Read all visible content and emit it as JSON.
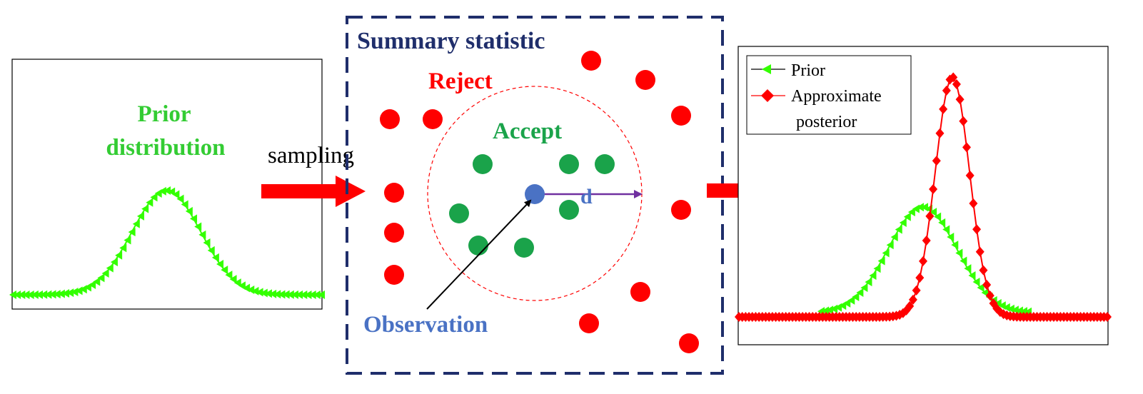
{
  "colors": {
    "prior_green": "#33cc33",
    "prior_marker": "#33ff00",
    "reject_red": "#ff0000",
    "accept_green": "#1aa34a",
    "observation_blue": "#4a72c4",
    "distance_purple": "#7030a0",
    "summary_navy": "#1f2e6b",
    "arrow_red": "#ff0000"
  },
  "left_panel": {
    "title_line1": "Prior",
    "title_line2": "distribution"
  },
  "arrow_label": "sampling",
  "center_panel": {
    "title": "Summary statistic",
    "reject_label": "Reject",
    "accept_label": "Accept",
    "observation_label": "Observation",
    "distance_label": "d"
  },
  "right_panel": {
    "legend": {
      "prior": "Prior",
      "posterior_line1": "Approximate",
      "posterior_line2": "posterior"
    }
  }
}
